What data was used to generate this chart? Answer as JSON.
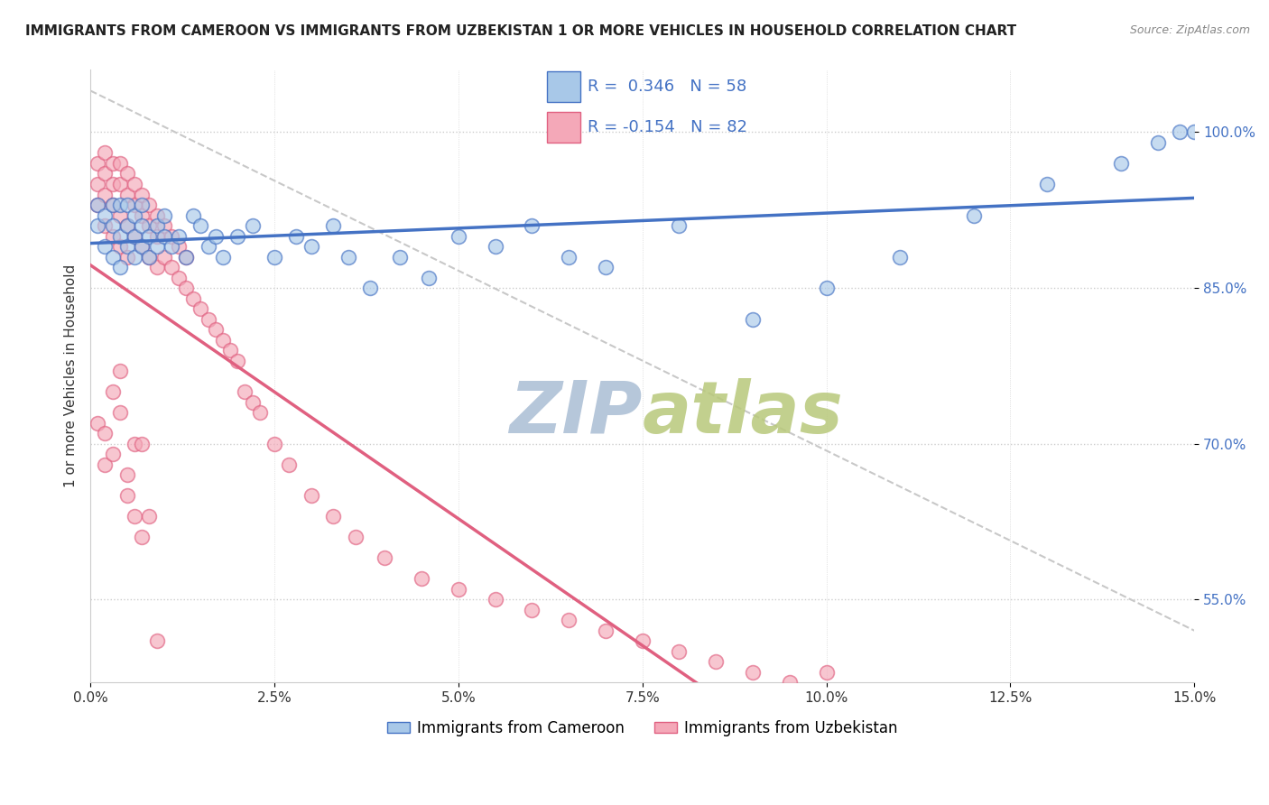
{
  "title": "IMMIGRANTS FROM CAMEROON VS IMMIGRANTS FROM UZBEKISTAN 1 OR MORE VEHICLES IN HOUSEHOLD CORRELATION CHART",
  "source": "Source: ZipAtlas.com",
  "ylabel": "1 or more Vehicles in Household",
  "legend_label1": "Immigrants from Cameroon",
  "legend_label2": "Immigrants from Uzbekistan",
  "R1": 0.346,
  "N1": 58,
  "R2": -0.154,
  "N2": 82,
  "color_cameroon": "#A8C8E8",
  "color_uzbekistan": "#F4A8B8",
  "color_line_cameroon": "#4472C4",
  "color_line_uzbekistan": "#E06080",
  "color_watermark_zip": "#B0C8E0",
  "color_watermark_atlas": "#C8D8A0",
  "xlim": [
    0.0,
    0.15
  ],
  "ylim": [
    0.47,
    1.06
  ],
  "yticks": [
    0.55,
    0.7,
    0.85,
    1.0
  ],
  "ytick_labels": [
    "55.0%",
    "70.0%",
    "85.0%",
    "100.0%"
  ],
  "background_color": "#FFFFFF",
  "cameroon_x": [
    0.001,
    0.001,
    0.002,
    0.002,
    0.003,
    0.003,
    0.003,
    0.004,
    0.004,
    0.004,
    0.005,
    0.005,
    0.005,
    0.006,
    0.006,
    0.006,
    0.007,
    0.007,
    0.007,
    0.008,
    0.008,
    0.009,
    0.009,
    0.01,
    0.01,
    0.011,
    0.012,
    0.013,
    0.014,
    0.015,
    0.016,
    0.017,
    0.018,
    0.02,
    0.022,
    0.025,
    0.028,
    0.03,
    0.033,
    0.035,
    0.038,
    0.042,
    0.046,
    0.05,
    0.055,
    0.06,
    0.065,
    0.07,
    0.08,
    0.09,
    0.1,
    0.11,
    0.12,
    0.13,
    0.14,
    0.145,
    0.148,
    0.15
  ],
  "cameroon_y": [
    0.91,
    0.93,
    0.89,
    0.92,
    0.88,
    0.91,
    0.93,
    0.87,
    0.9,
    0.93,
    0.89,
    0.91,
    0.93,
    0.88,
    0.9,
    0.92,
    0.89,
    0.91,
    0.93,
    0.88,
    0.9,
    0.89,
    0.91,
    0.9,
    0.92,
    0.89,
    0.9,
    0.88,
    0.92,
    0.91,
    0.89,
    0.9,
    0.88,
    0.9,
    0.91,
    0.88,
    0.9,
    0.89,
    0.91,
    0.88,
    0.85,
    0.88,
    0.86,
    0.9,
    0.89,
    0.91,
    0.88,
    0.87,
    0.91,
    0.82,
    0.85,
    0.88,
    0.92,
    0.95,
    0.97,
    0.99,
    1.0,
    1.0
  ],
  "uzbekistan_x": [
    0.001,
    0.001,
    0.001,
    0.002,
    0.002,
    0.002,
    0.002,
    0.003,
    0.003,
    0.003,
    0.003,
    0.004,
    0.004,
    0.004,
    0.004,
    0.005,
    0.005,
    0.005,
    0.005,
    0.006,
    0.006,
    0.006,
    0.007,
    0.007,
    0.007,
    0.008,
    0.008,
    0.008,
    0.009,
    0.009,
    0.009,
    0.01,
    0.01,
    0.011,
    0.011,
    0.012,
    0.012,
    0.013,
    0.013,
    0.014,
    0.015,
    0.016,
    0.017,
    0.018,
    0.019,
    0.02,
    0.021,
    0.022,
    0.023,
    0.025,
    0.027,
    0.03,
    0.033,
    0.036,
    0.04,
    0.045,
    0.05,
    0.055,
    0.06,
    0.065,
    0.07,
    0.075,
    0.08,
    0.085,
    0.09,
    0.095,
    0.1,
    0.001,
    0.002,
    0.002,
    0.003,
    0.003,
    0.004,
    0.004,
    0.005,
    0.005,
    0.006,
    0.006,
    0.007,
    0.007,
    0.008,
    0.009
  ],
  "uzbekistan_y": [
    0.93,
    0.95,
    0.97,
    0.91,
    0.94,
    0.96,
    0.98,
    0.9,
    0.93,
    0.95,
    0.97,
    0.89,
    0.92,
    0.95,
    0.97,
    0.88,
    0.91,
    0.94,
    0.96,
    0.9,
    0.93,
    0.95,
    0.89,
    0.92,
    0.94,
    0.88,
    0.91,
    0.93,
    0.87,
    0.9,
    0.92,
    0.88,
    0.91,
    0.87,
    0.9,
    0.86,
    0.89,
    0.85,
    0.88,
    0.84,
    0.83,
    0.82,
    0.81,
    0.8,
    0.79,
    0.78,
    0.75,
    0.74,
    0.73,
    0.7,
    0.68,
    0.65,
    0.63,
    0.61,
    0.59,
    0.57,
    0.56,
    0.55,
    0.54,
    0.53,
    0.52,
    0.51,
    0.5,
    0.49,
    0.48,
    0.47,
    0.48,
    0.72,
    0.71,
    0.68,
    0.75,
    0.69,
    0.73,
    0.77,
    0.65,
    0.67,
    0.7,
    0.63,
    0.7,
    0.61,
    0.63,
    0.51
  ]
}
